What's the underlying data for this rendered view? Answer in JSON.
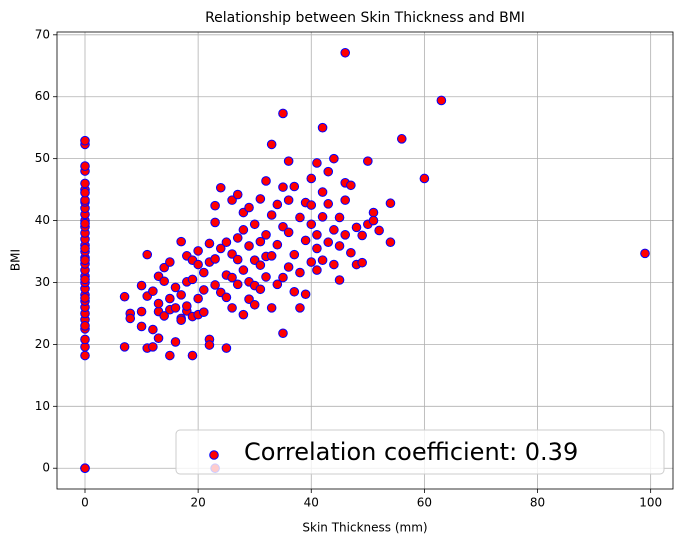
{
  "chart_data": {
    "type": "scatter",
    "title": "Relationship between Skin Thickness and BMI",
    "x_label": "Skin Thickness (mm)",
    "y_label": "BMI",
    "series": [
      {
        "name": "Correlation coefficient: 0.39",
        "color": "red",
        "edgecolor": "blue",
        "x": [
          0,
          0,
          0,
          0,
          0,
          0,
          0,
          0,
          0,
          0,
          0,
          0,
          0,
          0,
          0,
          0,
          0,
          0,
          0,
          0,
          0,
          0,
          0,
          0,
          0,
          0,
          0,
          0,
          0,
          0,
          0,
          0,
          0,
          0,
          0,
          0,
          0,
          0,
          0,
          0,
          7,
          7,
          8,
          8,
          10,
          10,
          10,
          11,
          11,
          11,
          12,
          12,
          12,
          13,
          13,
          13,
          13,
          14,
          14,
          14,
          15,
          15,
          15,
          15,
          16,
          16,
          16,
          17,
          17,
          17,
          17,
          18,
          18,
          18,
          18,
          19,
          19,
          19,
          19,
          20,
          20,
          20,
          20,
          21,
          21,
          21,
          22,
          22,
          22,
          22,
          23,
          23,
          23,
          23,
          23,
          24,
          24,
          24,
          25,
          25,
          25,
          25,
          26,
          26,
          26,
          26,
          27,
          27,
          27,
          27,
          28,
          28,
          28,
          28,
          29,
          29,
          29,
          29,
          30,
          30,
          30,
          30,
          31,
          31,
          31,
          31,
          32,
          32,
          32,
          32,
          33,
          33,
          33,
          33,
          34,
          34,
          34,
          35,
          35,
          35,
          35,
          35,
          36,
          36,
          36,
          36,
          37,
          37,
          37,
          38,
          38,
          38,
          39,
          39,
          39,
          40,
          40,
          40,
          40,
          41,
          41,
          41,
          41,
          42,
          42,
          42,
          42,
          43,
          43,
          43,
          44,
          44,
          44,
          45,
          45,
          45,
          46,
          46,
          46,
          46,
          47,
          47,
          48,
          48,
          49,
          49,
          50,
          50,
          51,
          51,
          52,
          54,
          54,
          56,
          60,
          63,
          99
        ],
        "values": [
          0,
          0,
          18.2,
          19.6,
          20.8,
          22.5,
          24,
          25,
          26,
          27,
          28,
          29,
          30,
          31,
          32,
          33,
          34,
          35,
          36,
          37,
          38,
          39,
          40,
          41,
          42,
          43,
          45,
          46,
          48,
          48.8,
          52.3,
          52.9,
          23,
          27.5,
          30.5,
          33.6,
          35.5,
          39.5,
          43.3,
          44.5,
          19.6,
          27.7,
          25,
          24.2,
          29.5,
          25.3,
          22.9,
          34.5,
          19.4,
          27.8,
          22.4,
          19.6,
          28.6,
          31,
          21,
          25.3,
          26.6,
          24.6,
          30.2,
          32.4,
          18.2,
          25.6,
          27.4,
          33.3,
          20.4,
          25.9,
          29.2,
          36.6,
          24.2,
          28,
          23.9,
          30.1,
          25.4,
          26.2,
          34.3,
          18.2,
          24.5,
          30.5,
          33.6,
          27.4,
          32.9,
          24.8,
          35.1,
          31.6,
          28.8,
          25.2,
          20.8,
          19.9,
          33.3,
          36.3,
          42.4,
          39.7,
          29.6,
          33.8,
          0,
          45.3,
          35.5,
          28.4,
          19.4,
          31.2,
          36.5,
          27.6,
          43.3,
          30.8,
          34.6,
          25.9,
          44.2,
          37.2,
          29.7,
          33.7,
          24.8,
          32,
          38.5,
          41.3,
          35.9,
          30.1,
          27.3,
          42.1,
          33.6,
          39.4,
          29.5,
          26.4,
          43.5,
          36.6,
          32.8,
          28.9,
          46.4,
          34.2,
          37.7,
          30.9,
          52.3,
          25.9,
          40.9,
          34.3,
          36.1,
          29.7,
          42.6,
          57.3,
          39,
          21.8,
          45.4,
          30.8,
          49.6,
          32.5,
          43.3,
          38.1,
          34.5,
          28.5,
          45.5,
          40.5,
          31.6,
          25.9,
          42.9,
          36.8,
          28.1,
          46.8,
          39.4,
          33.3,
          42.5,
          49.3,
          35.5,
          37.7,
          32,
          55,
          44.6,
          33.6,
          40.6,
          47.9,
          36.5,
          42.7,
          50,
          38.5,
          32.9,
          30.4,
          40.5,
          35.9,
          67.1,
          46.1,
          43.3,
          37.7,
          45.7,
          34.8,
          32.9,
          38.9,
          33.2,
          37.6,
          49.6,
          39.4,
          41.3,
          40,
          38.4,
          42.8,
          36.5,
          53.2,
          46.8,
          59.4,
          34.7
        ]
      }
    ],
    "xlim": [
      -4.95,
      103.95
    ],
    "ylim": [
      -3.355,
      70.455
    ],
    "xticks": [
      0,
      20,
      40,
      60,
      80,
      100
    ],
    "yticks": [
      0,
      10,
      20,
      30,
      40,
      50,
      60,
      70
    ],
    "grid": true,
    "legend": "lower right"
  }
}
